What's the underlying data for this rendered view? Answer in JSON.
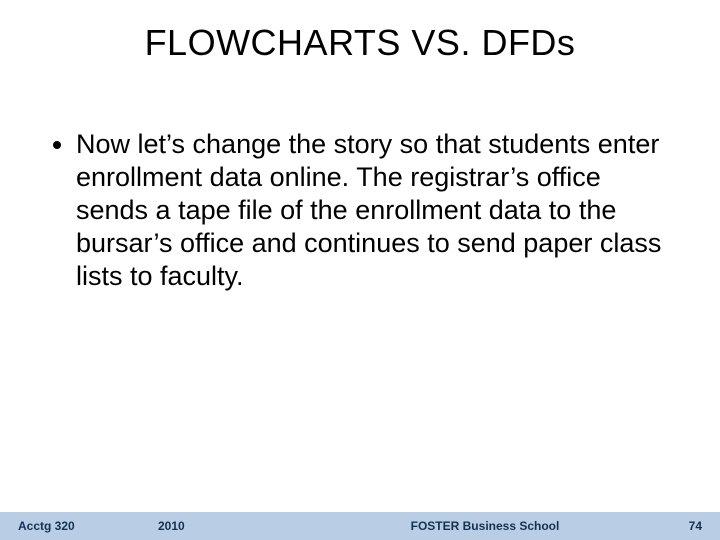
{
  "title": "FLOWCHARTS VS. DFDs",
  "bullets": [
    "Now let’s change the story so that students enter enrollment data online.  The registrar’s office sends a tape file of the enrollment data to the bursar’s office and continues to send paper class lists to faculty."
  ],
  "footer": {
    "course": "Acctg 320",
    "year": "2010",
    "school": "FOSTER Business School",
    "page": "74"
  },
  "colors": {
    "background": "#ffffff",
    "text": "#000000",
    "footer_bg": "#b9cee4",
    "footer_text": "#153256"
  },
  "fonts": {
    "title_size_pt": 36,
    "body_size_pt": 27,
    "footer_size_pt": 12
  }
}
